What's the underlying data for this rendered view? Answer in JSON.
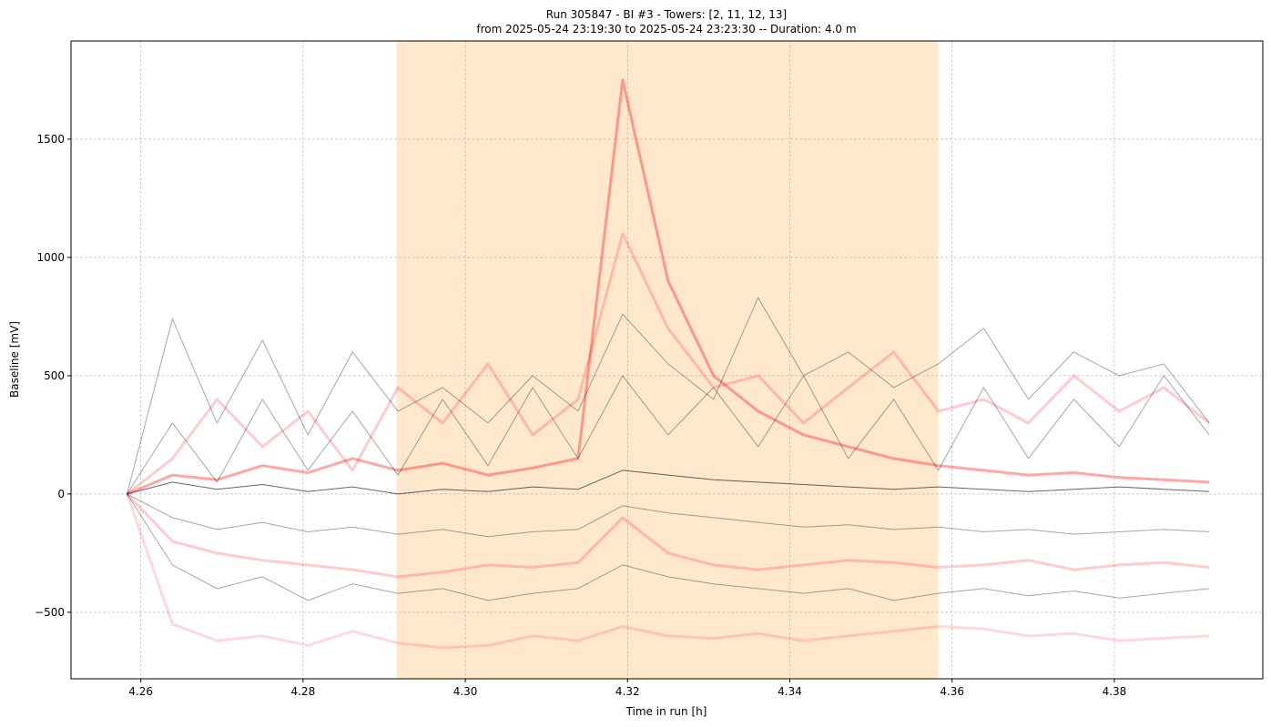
{
  "chart_data": {
    "type": "line",
    "title": "Run 305847  -  BI #3  -  Towers: [2, 11, 12, 13]",
    "subtitle": "from  2025-05-24 23:19:30  to  2025-05-24 23:23:30 -- Duration: 4.0 m",
    "x_label": "Time in run [h]",
    "y_label": "Baseline [mV]",
    "xlim": [
      4.2514,
      4.3983
    ],
    "ylim": [
      -781,
      1915
    ],
    "xticks": [
      4.26,
      4.28,
      {
        "value": 4.3,
        "label": "4.30"
      },
      4.32,
      4.34,
      4.36,
      4.38
    ],
    "yticks": [
      {
        "value": -500,
        "label": "−500"
      },
      0,
      500,
      1000,
      1500
    ],
    "grid": true,
    "span": {
      "xmin": 4.2915,
      "xmax": 4.3583,
      "color": "#ffe8cc"
    },
    "x": [
      4.2583,
      4.2639,
      4.2694,
      4.275,
      4.2806,
      4.2861,
      4.2917,
      4.2972,
      4.3028,
      4.3083,
      4.3139,
      4.3194,
      4.325,
      4.3306,
      4.3361,
      4.3417,
      4.3472,
      4.3528,
      4.3583,
      4.3639,
      4.3694,
      4.375,
      4.3806,
      4.3861,
      4.3917
    ],
    "series": [
      {
        "color": "#ff0000",
        "alpha": 0.15,
        "linewidth": 3,
        "values": [
          0,
          -550,
          -620,
          -600,
          -640,
          -580,
          -630,
          -650,
          -640,
          -600,
          -620,
          -560,
          -600,
          -610,
          -590,
          -620,
          -600,
          -580,
          -560,
          -570,
          -600,
          -590,
          -620,
          -610,
          -600
        ]
      },
      {
        "color": "#ff0000",
        "alpha": 0.2,
        "linewidth": 3,
        "values": [
          0,
          -200,
          -250,
          -280,
          -300,
          -320,
          -350,
          -330,
          -300,
          -310,
          -290,
          -100,
          -250,
          -300,
          -320,
          -300,
          -280,
          -290,
          -310,
          -300,
          -280,
          -320,
          -300,
          -290,
          -310
        ]
      },
      {
        "color": "#ff0000",
        "alpha": 0.2,
        "linewidth": 3,
        "values": [
          0,
          150,
          400,
          200,
          350,
          100,
          450,
          300,
          550,
          250,
          400,
          1100,
          700,
          450,
          500,
          300,
          450,
          600,
          350,
          400,
          300,
          500,
          350,
          450,
          300
        ]
      },
      {
        "color": "#ff0000",
        "alpha": 0.35,
        "linewidth": 3,
        "values": [
          0,
          80,
          60,
          120,
          90,
          150,
          100,
          130,
          80,
          110,
          150,
          1750,
          900,
          500,
          350,
          250,
          200,
          150,
          120,
          100,
          80,
          90,
          70,
          60,
          50
        ]
      },
      {
        "color": "#000000",
        "alpha": 0.35,
        "linewidth": 1,
        "values": [
          0,
          -300,
          -400,
          -350,
          -450,
          -380,
          -420,
          -400,
          -450,
          -420,
          -400,
          -300,
          -350,
          -380,
          -400,
          -420,
          -400,
          -450,
          -420,
          -400,
          -430,
          -410,
          -440,
          -420,
          -400
        ]
      },
      {
        "color": "#000000",
        "alpha": 0.35,
        "linewidth": 1,
        "values": [
          0,
          -100,
          -150,
          -120,
          -160,
          -140,
          -170,
          -150,
          -180,
          -160,
          -150,
          -50,
          -80,
          -100,
          -120,
          -140,
          -130,
          -150,
          -140,
          -160,
          -150,
          -170,
          -160,
          -150,
          -160
        ]
      },
      {
        "color": "#000000",
        "alpha": 0.35,
        "linewidth": 1,
        "values": [
          0,
          740,
          300,
          650,
          250,
          600,
          350,
          450,
          300,
          500,
          350,
          760,
          550,
          400,
          830,
          500,
          600,
          450,
          550,
          700,
          400,
          600,
          500,
          550,
          300
        ]
      },
      {
        "color": "#000000",
        "alpha": 0.35,
        "linewidth": 1,
        "values": [
          0,
          300,
          50,
          400,
          100,
          350,
          80,
          400,
          120,
          450,
          150,
          500,
          250,
          450,
          200,
          500,
          150,
          400,
          100,
          450,
          150,
          400,
          200,
          500,
          250
        ]
      },
      {
        "color": "#000000",
        "alpha": 0.6,
        "linewidth": 1,
        "values": [
          0,
          50,
          20,
          40,
          10,
          30,
          0,
          20,
          10,
          30,
          20,
          100,
          80,
          60,
          50,
          40,
          30,
          20,
          30,
          20,
          10,
          20,
          30,
          20,
          10
        ]
      }
    ]
  }
}
